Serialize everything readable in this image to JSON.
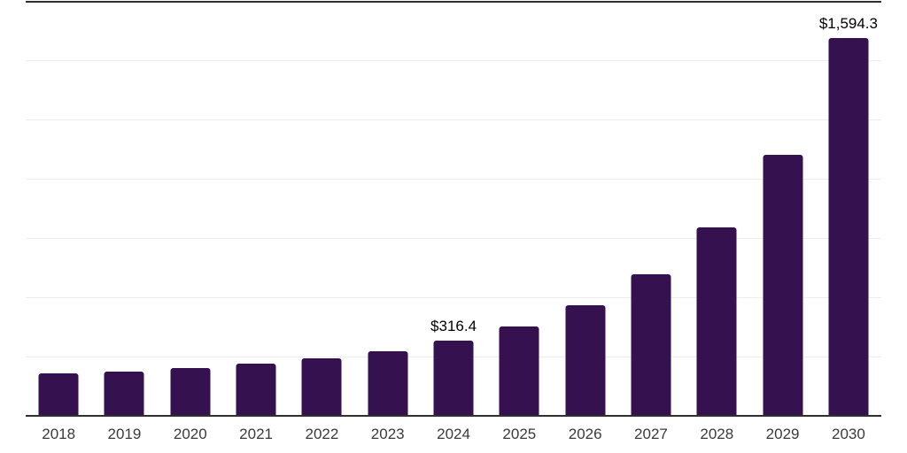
{
  "chart_data": {
    "type": "bar",
    "categories": [
      "2018",
      "2019",
      "2020",
      "2021",
      "2022",
      "2023",
      "2024",
      "2025",
      "2026",
      "2027",
      "2028",
      "2029",
      "2030"
    ],
    "values": [
      178,
      188,
      201,
      219,
      244,
      274,
      316.4,
      377,
      466,
      598,
      794,
      1100,
      1594.3
    ],
    "data_labels": [
      "",
      "",
      "",
      "",
      "",
      "",
      "$316.4",
      "",
      "",
      "",
      "",
      "",
      "$1,594.3"
    ],
    "xlabel": "",
    "ylabel": "",
    "ylim": [
      0,
      1750
    ],
    "gridline_interval": 250,
    "grid": "horizontal light gray lines, dark line at top and at x-axis",
    "legend_position": "none",
    "colors": {
      "bar": "#351150",
      "axis_line": "#303030",
      "gridline": "#ededed",
      "tick_label": "#3a3a3a",
      "data_label": "#000000",
      "background": "#ffffff"
    }
  }
}
